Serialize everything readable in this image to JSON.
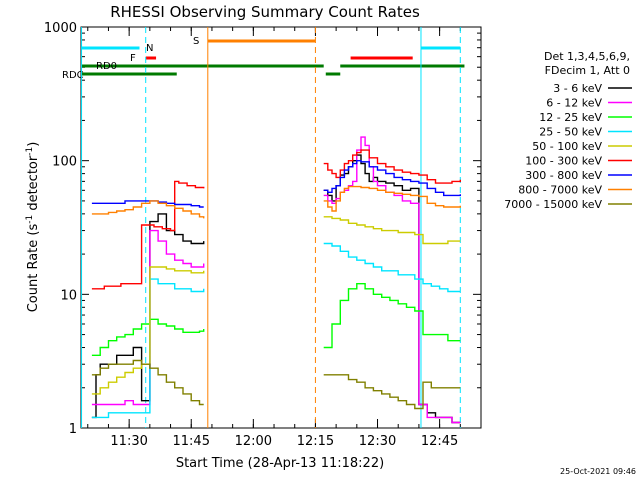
{
  "chart_data": {
    "type": "line",
    "title": "RHESSI Observing Summary Count Rates",
    "xlabel": "Start Time (28-Apr-13 11:18:22)",
    "ylabel": "Count Rate (s",
    "ylabel_sup": "-1",
    "ylabel_rest": " detector",
    "ylabel_sup2": "-1",
    "ylabel_end": ")",
    "y_scale": "log",
    "ylim": [
      1,
      1000
    ],
    "xlim": [
      "11:18:22",
      "12:55:00"
    ],
    "x_ticks": [
      "11:30",
      "11:45",
      "12:00",
      "12:15",
      "12:30",
      "12:45"
    ],
    "y_ticks": [
      {
        "value": 1,
        "label": "1"
      },
      {
        "value": 10,
        "label": "10"
      },
      {
        "value": 100,
        "label": "100"
      },
      {
        "value": 1000,
        "label": "1000"
      }
    ],
    "legend_position": "right",
    "legend_header": [
      "Det 1,3,4,5,6,9,",
      "FDecim 1, Att 0"
    ],
    "flag_labels": [
      {
        "label": "N",
        "color": "#00e5ff"
      },
      {
        "label": "F",
        "color": "#ff0000"
      },
      {
        "label": "RD0",
        "color": "#000000"
      },
      {
        "label": "RDC",
        "color": "#007a00"
      },
      {
        "label": "S",
        "color": "#ff8000"
      }
    ],
    "flag_bars": [
      {
        "name": "N",
        "color": "#00e5ff",
        "segments": [
          [
            "11:18:30",
            "11:32:30"
          ],
          [
            "12:40:30",
            "12:50:00"
          ]
        ]
      },
      {
        "name": "F",
        "color": "#ff0000",
        "segments": [
          [
            "11:34:00",
            "11:36:30"
          ],
          [
            "12:23:30",
            "12:38:30"
          ]
        ]
      },
      {
        "name": "S",
        "color": "#ff8000",
        "segments": [
          [
            "11:49:00",
            "12:15:00"
          ]
        ]
      },
      {
        "name": "RD0",
        "color": "#007a00",
        "segments": [
          [
            "11:18:30",
            "12:17:00"
          ],
          [
            "12:21:00",
            "12:51:00"
          ]
        ]
      },
      {
        "name": "RDC",
        "color": "#007a00",
        "segments": [
          [
            "11:18:30",
            "11:41:30"
          ],
          [
            "12:17:30",
            "12:21:00"
          ]
        ]
      }
    ],
    "night_markers": [
      {
        "time": "11:18:30",
        "color": "#00e5ff",
        "style": "solid"
      },
      {
        "time": "11:34:00",
        "color": "#00e5ff",
        "style": "dashed"
      },
      {
        "time": "11:49:00",
        "color": "#ff8000",
        "style": "solid"
      },
      {
        "time": "12:15:00",
        "color": "#ff8000",
        "style": "dashed"
      },
      {
        "time": "12:40:30",
        "color": "#00e5ff",
        "style": "solid"
      },
      {
        "time": "12:50:00",
        "color": "#00e5ff",
        "style": "dashed"
      }
    ],
    "series": [
      {
        "name": "3 - 6 keV",
        "color": "#000000",
        "segments": [
          {
            "x": [
              "11:21",
              "11:22",
              "11:23",
              "11:25",
              "11:27",
              "11:29",
              "11:31",
              "11:33",
              "11:35",
              "11:37",
              "11:39",
              "11:41",
              "11:43",
              "11:45",
              "11:47",
              "11:48"
            ],
            "y": [
              1.2,
              2.5,
              3,
              3,
              3.5,
              3.5,
              4,
              1.6,
              35,
              40,
              30,
              28,
              25,
              24,
              24,
              25
            ]
          },
          {
            "x": [
              "12:17",
              "12:18",
              "12:19",
              "12:20",
              "12:21",
              "12:22",
              "12:23",
              "12:24",
              "12:25",
              "12:26",
              "12:27",
              "12:28",
              "12:29",
              "12:30",
              "12:32",
              "12:34",
              "12:36",
              "12:38",
              "12:40",
              "12:42",
              "12:44",
              "12:46",
              "12:48",
              "12:50"
            ],
            "y": [
              60,
              55,
              50,
              65,
              78,
              80,
              90,
              100,
              110,
              95,
              80,
              70,
              75,
              70,
              68,
              65,
              60,
              62,
              1.5,
              1.3,
              1.2,
              1.2,
              1.1,
              1.1
            ]
          }
        ]
      },
      {
        "name": "6 - 12 keV",
        "color": "#ff00ff",
        "segments": [
          {
            "x": [
              "11:21",
              "11:23",
              "11:25",
              "11:27",
              "11:29",
              "11:31",
              "11:33",
              "11:35",
              "11:37",
              "11:39",
              "11:41",
              "11:43",
              "11:45",
              "11:47",
              "11:48"
            ],
            "y": [
              1.5,
              1.5,
              1.5,
              1.5,
              1.6,
              1.5,
              1.5,
              30,
              25,
              20,
              18,
              17,
              16,
              16,
              17
            ]
          },
          {
            "x": [
              "12:17",
              "12:18",
              "12:19",
              "12:20",
              "12:21",
              "12:22",
              "12:23",
              "12:24",
              "12:25",
              "12:26",
              "12:27",
              "12:28",
              "12:29",
              "12:30",
              "12:32",
              "12:34",
              "12:36",
              "12:38",
              "12:40",
              "12:42",
              "12:44",
              "12:46",
              "12:48",
              "12:50"
            ],
            "y": [
              55,
              50,
              48,
              52,
              58,
              60,
              65,
              70,
              120,
              150,
              130,
              90,
              70,
              65,
              58,
              55,
              50,
              48,
              1.5,
              1.2,
              1.2,
              1.2,
              1.1,
              1.1
            ]
          }
        ]
      },
      {
        "name": "12 - 25 keV",
        "color": "#00ff00",
        "segments": [
          {
            "x": [
              "11:21",
              "11:23",
              "11:25",
              "11:27",
              "11:29",
              "11:31",
              "11:33",
              "11:35",
              "11:37",
              "11:39",
              "11:41",
              "11:43",
              "11:45",
              "11:47",
              "11:48"
            ],
            "y": [
              3.5,
              4,
              4.5,
              4.8,
              5,
              5.5,
              6,
              6.5,
              6,
              5.8,
              5.5,
              5.2,
              5.2,
              5.3,
              5.5
            ]
          },
          {
            "x": [
              "12:17",
              "12:19",
              "12:21",
              "12:23",
              "12:25",
              "12:27",
              "12:29",
              "12:31",
              "12:33",
              "12:35",
              "12:37",
              "12:39",
              "12:41",
              "12:43",
              "12:45",
              "12:47",
              "12:49",
              "12:50"
            ],
            "y": [
              4,
              6,
              9,
              11,
              12,
              11,
              10,
              9.5,
              9,
              8.5,
              8,
              7.5,
              5,
              5,
              5,
              4.5,
              4.5,
              4.5
            ]
          }
        ]
      },
      {
        "name": "25 - 50 keV",
        "color": "#00e5ff",
        "segments": [
          {
            "x": [
              "11:21",
              "11:23",
              "11:25",
              "11:27",
              "11:29",
              "11:31",
              "11:33",
              "11:35",
              "11:37",
              "11:39",
              "11:41",
              "11:43",
              "11:45",
              "11:47",
              "11:48"
            ],
            "y": [
              1.2,
              1.2,
              1.3,
              1.3,
              1.3,
              1.3,
              1.3,
              13,
              12,
              12,
              11,
              11,
              10.5,
              10.5,
              11
            ]
          },
          {
            "x": [
              "12:17",
              "12:19",
              "12:21",
              "12:23",
              "12:25",
              "12:27",
              "12:29",
              "12:31",
              "12:33",
              "12:35",
              "12:37",
              "12:39",
              "12:41",
              "12:43",
              "12:45",
              "12:47",
              "12:49",
              "12:50"
            ],
            "y": [
              24,
              23,
              21,
              19,
              18,
              17,
              16,
              15,
              15,
              14,
              14,
              13,
              12,
              11.5,
              11,
              10.5,
              10.5,
              10.5
            ]
          }
        ]
      },
      {
        "name": "50 - 100 keV",
        "color": "#cccc00",
        "segments": [
          {
            "x": [
              "11:21",
              "11:23",
              "11:25",
              "11:27",
              "11:29",
              "11:31",
              "11:33",
              "11:35",
              "11:37",
              "11:39",
              "11:41",
              "11:43",
              "11:45",
              "11:47",
              "11:48"
            ],
            "y": [
              1.8,
              2,
              2.2,
              2.4,
              2.6,
              2.8,
              3,
              16,
              16,
              15.5,
              15,
              15,
              14.5,
              14.5,
              15
            ]
          },
          {
            "x": [
              "12:17",
              "12:19",
              "12:21",
              "12:23",
              "12:25",
              "12:27",
              "12:29",
              "12:31",
              "12:33",
              "12:35",
              "12:37",
              "12:39",
              "12:41",
              "12:43",
              "12:45",
              "12:47",
              "12:49",
              "12:50"
            ],
            "y": [
              38,
              37,
              36,
              34,
              33,
              32,
              31,
              30,
              30,
              29,
              29,
              28,
              24,
              24,
              24,
              25,
              25,
              25
            ]
          }
        ]
      },
      {
        "name": "100 - 300 keV",
        "color": "#ff0000",
        "segments": [
          {
            "x": [
              "11:21",
              "11:22",
              "11:24",
              "11:26",
              "11:28",
              "11:30",
              "11:32",
              "11:33",
              "11:34",
              "11:36",
              "11:38",
              "11:40",
              "11:41",
              "11:42",
              "11:44",
              "11:46",
              "11:48"
            ],
            "y": [
              11,
              11,
              11.5,
              11.5,
              12,
              12,
              12,
              33,
              33,
              32,
              31,
              30,
              70,
              68,
              65,
              63,
              62
            ]
          },
          {
            "x": [
              "12:17",
              "12:18",
              "12:19",
              "12:20",
              "12:21",
              "12:22",
              "12:23",
              "12:24",
              "12:25",
              "12:26",
              "12:28",
              "12:30",
              "12:32",
              "12:34",
              "12:36",
              "12:38",
              "12:40",
              "12:42",
              "12:44",
              "12:46",
              "12:48",
              "12:50"
            ],
            "y": [
              95,
              85,
              80,
              75,
              85,
              95,
              100,
              110,
              115,
              120,
              105,
              95,
              90,
              85,
              82,
              80,
              78,
              72,
              68,
              68,
              70,
              72
            ]
          }
        ]
      },
      {
        "name": "300 - 800 keV",
        "color": "#0000ff",
        "segments": [
          {
            "x": [
              "11:21",
              "11:23",
              "11:25",
              "11:27",
              "11:29",
              "11:31",
              "11:33",
              "11:35",
              "11:37",
              "11:39",
              "11:41",
              "11:43",
              "11:45",
              "11:47",
              "11:48"
            ],
            "y": [
              48,
              48,
              48,
              48,
              50,
              50,
              50,
              50,
              49,
              48,
              47,
              47,
              46,
              45,
              45
            ]
          },
          {
            "x": [
              "12:17",
              "12:18",
              "12:19",
              "12:20",
              "12:21",
              "12:22",
              "12:23",
              "12:24",
              "12:25",
              "12:26",
              "12:28",
              "12:30",
              "12:32",
              "12:34",
              "12:36",
              "12:38",
              "12:40",
              "12:42",
              "12:44",
              "12:46",
              "12:48",
              "12:50"
            ],
            "y": [
              60,
              58,
              62,
              65,
              75,
              85,
              90,
              95,
              100,
              98,
              90,
              85,
              80,
              75,
              72,
              70,
              68,
              62,
              58,
              55,
              55,
              56
            ]
          }
        ]
      },
      {
        "name": "800 - 7000 keV",
        "color": "#ff8000",
        "segments": [
          {
            "x": [
              "11:21",
              "11:23",
              "11:25",
              "11:27",
              "11:29",
              "11:31",
              "11:33",
              "11:35",
              "11:37",
              "11:39",
              "11:41",
              "11:43",
              "11:45",
              "11:47",
              "11:48"
            ],
            "y": [
              40,
              40,
              41,
              42,
              43,
              45,
              48,
              50,
              48,
              46,
              44,
              42,
              40,
              38,
              37
            ]
          },
          {
            "x": [
              "12:17",
              "12:18",
              "12:19",
              "12:20",
              "12:21",
              "12:22",
              "12:23",
              "12:24",
              "12:26",
              "12:28",
              "12:30",
              "12:32",
              "12:34",
              "12:36",
              "12:38",
              "12:40",
              "12:42",
              "12:44",
              "12:46",
              "12:48",
              "12:50"
            ],
            "y": [
              50,
              45,
              42,
              50,
              58,
              62,
              64,
              64,
              63,
              62,
              60,
              58,
              57,
              56,
              55,
              54,
              48,
              46,
              45,
              45,
              46
            ]
          }
        ]
      },
      {
        "name": "7000 - 15000 keV",
        "color": "#808000",
        "segments": [
          {
            "x": [
              "11:21",
              "11:23",
              "11:25",
              "11:27",
              "11:29",
              "11:31",
              "11:33",
              "11:35",
              "11:37",
              "11:39",
              "11:41",
              "11:43",
              "11:45",
              "11:47",
              "11:48"
            ],
            "y": [
              2.5,
              2.8,
              3,
              3,
              3,
              3.2,
              3,
              2.8,
              2.5,
              2.2,
              2,
              1.8,
              1.6,
              1.5,
              1.5
            ]
          },
          {
            "x": [
              "12:17",
              "12:19",
              "12:21",
              "12:23",
              "12:25",
              "12:27",
              "12:29",
              "12:31",
              "12:33",
              "12:35",
              "12:37",
              "12:39",
              "12:41",
              "12:43",
              "12:45",
              "12:47",
              "12:49",
              "12:50"
            ],
            "y": [
              2.5,
              2.5,
              2.5,
              2.3,
              2.2,
              2,
              1.9,
              1.8,
              1.7,
              1.6,
              1.5,
              1.4,
              2.2,
              2,
              2,
              2,
              2,
              2
            ]
          }
        ]
      }
    ],
    "timestamp": "25-Oct-2021 09:46"
  }
}
